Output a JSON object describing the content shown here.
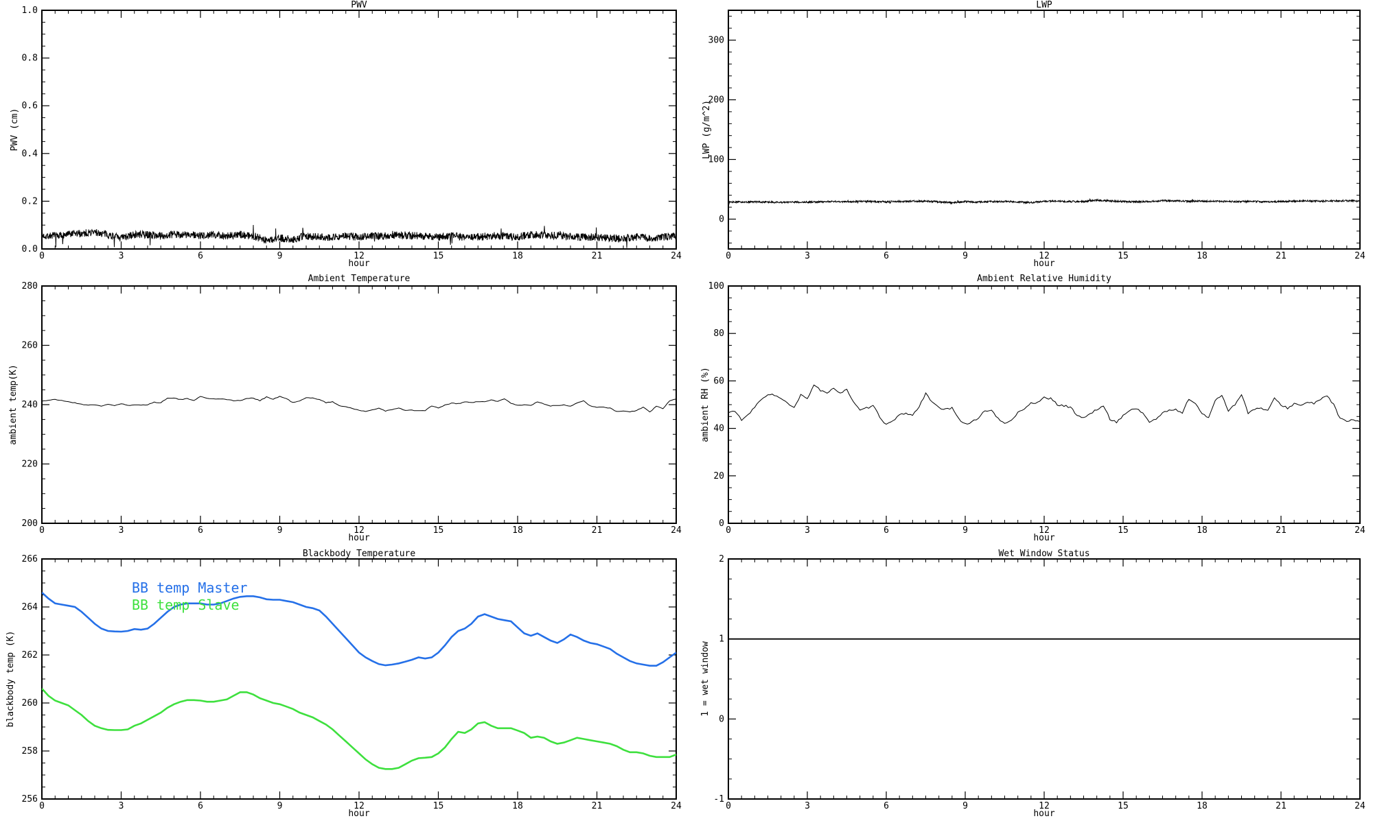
{
  "page": {
    "background": "#ffffff",
    "text_color": "#000000"
  },
  "chart_data": [
    {
      "id": "pwv",
      "type": "line",
      "title": "PWV",
      "xlabel": "hour",
      "ylabel": "PWV (cm)",
      "xlim": [
        0,
        24
      ],
      "xticks": [
        0,
        3,
        6,
        9,
        12,
        15,
        18,
        21,
        24
      ],
      "xtick_labels": [
        "0",
        "3",
        "6",
        "9",
        "12",
        "15",
        "18",
        "21",
        "24"
      ],
      "x_minor_step": 0.5,
      "ylim": [
        0,
        1
      ],
      "yticks": [
        0,
        0.2,
        0.4,
        0.6,
        0.8,
        1
      ],
      "ytick_labels": [
        "0.0",
        "0.2",
        "0.4",
        "0.6",
        "0.8",
        "1.0"
      ],
      "y_minor_step": 0.05,
      "grid": false,
      "legend_position": null,
      "series": [
        {
          "name": "PWV",
          "color": "#000000",
          "width": 1,
          "x0": 0,
          "dx": 0.5,
          "noise": 0.016,
          "points_per_hour": 85,
          "seed": 7,
          "spikes": true,
          "y": [
            0.055,
            0.055,
            0.06,
            0.065,
            0.07,
            0.06,
            0.045,
            0.06,
            0.06,
            0.055,
            0.06,
            0.06,
            0.055,
            0.06,
            0.055,
            0.06,
            0.055,
            0.035,
            0.045,
            0.04,
            0.055,
            0.05,
            0.05,
            0.055,
            0.05,
            0.055,
            0.055,
            0.06,
            0.055,
            0.055,
            0.05,
            0.055,
            0.05,
            0.05,
            0.055,
            0.055,
            0.05,
            0.06,
            0.06,
            0.055,
            0.05,
            0.05,
            0.05,
            0.045,
            0.045,
            0.05,
            0.045,
            0.05,
            0.055
          ]
        }
      ]
    },
    {
      "id": "lwp",
      "type": "line",
      "title": "LWP",
      "xlabel": "hour",
      "ylabel": "LWP (g/m^2)",
      "xlim": [
        0,
        24
      ],
      "xticks": [
        0,
        3,
        6,
        9,
        12,
        15,
        18,
        21,
        24
      ],
      "xtick_labels": [
        "0",
        "3",
        "6",
        "9",
        "12",
        "15",
        "18",
        "21",
        "24"
      ],
      "x_minor_step": 0.5,
      "ylim": [
        -50,
        350
      ],
      "yticks": [
        0,
        100,
        200,
        300
      ],
      "ytick_labels": [
        "0",
        "100",
        "200",
        "300"
      ],
      "y_minor_step": 20,
      "grid": false,
      "legend_position": null,
      "series": [
        {
          "name": "LWP",
          "color": "#000000",
          "width": 1,
          "x0": 0,
          "dx": 0.5,
          "noise": 1.4,
          "points_per_hour": 85,
          "seed": 13,
          "spikes": true,
          "y": [
            29,
            28.5,
            29,
            28.5,
            28,
            28.5,
            28.5,
            29,
            29.5,
            29,
            30,
            29.5,
            29,
            29.5,
            30,
            30,
            29,
            27.5,
            29.5,
            28.5,
            29.5,
            29.5,
            29,
            27.5,
            30,
            30,
            29.5,
            29.5,
            32,
            30.5,
            29.5,
            29,
            29.5,
            31,
            30.5,
            30,
            30,
            30,
            29.5,
            29.5,
            29.5,
            29,
            29.5,
            30,
            30.5,
            30,
            30.5,
            31,
            30
          ]
        }
      ]
    },
    {
      "id": "ambient-temperature",
      "type": "line",
      "title": "Ambient Temperature",
      "xlabel": "hour",
      "ylabel": "ambient temp(K)",
      "xlim": [
        0,
        24
      ],
      "xticks": [
        0,
        3,
        6,
        9,
        12,
        15,
        18,
        21,
        24
      ],
      "xtick_labels": [
        "0",
        "3",
        "6",
        "9",
        "12",
        "15",
        "18",
        "21",
        "24"
      ],
      "x_minor_step": 0.5,
      "ylim": [
        200,
        280
      ],
      "yticks": [
        200,
        220,
        240,
        260,
        280
      ],
      "ytick_labels": [
        "200",
        "220",
        "240",
        "260",
        "280"
      ],
      "y_minor_step": 5,
      "grid": false,
      "legend_position": null,
      "series": [
        {
          "name": "ambient temp",
          "color": "#000000",
          "width": 1,
          "x0": 0,
          "dx": 0.25,
          "noise": 0.12,
          "points_per_hour": 12,
          "seed": 21,
          "y": [
            241.2,
            241.5,
            241.7,
            241.4,
            241.0,
            240.6,
            240.1,
            239.9,
            240.0,
            239.4,
            240.2,
            239.7,
            240.3,
            239.7,
            239.8,
            239.9,
            240.0,
            240.8,
            240.6,
            242.3,
            242.2,
            241.7,
            242.0,
            241.5,
            242.7,
            242.2,
            241.9,
            242.0,
            241.8,
            241.3,
            241.4,
            242.0,
            242.2,
            241.4,
            242.6,
            241.8,
            242.8,
            242.0,
            240.7,
            241.2,
            242.3,
            242.2,
            241.8,
            240.7,
            240.9,
            239.7,
            239.3,
            238.8,
            238.0,
            237.7,
            238.3,
            238.8,
            237.9,
            238.3,
            238.8,
            238.1,
            238.1,
            237.9,
            238.0,
            239.6,
            238.8,
            239.8,
            240.5,
            240.3,
            240.9,
            240.7,
            241.0,
            240.9,
            241.6,
            241.1,
            241.9,
            240.5,
            239.8,
            239.9,
            239.8,
            240.9,
            240.2,
            239.6,
            239.7,
            240.0,
            239.5,
            240.6,
            241.4,
            239.5,
            239.1,
            239.2,
            238.8,
            237.7,
            237.8,
            237.6,
            238.0,
            239.1,
            237.5,
            239.5,
            238.6,
            241.3,
            242.0
          ]
        }
      ]
    },
    {
      "id": "ambient-rh",
      "type": "line",
      "title": "Ambient Relative Humidity",
      "xlabel": "hour",
      "ylabel": "ambient RH (%)",
      "xlim": [
        0,
        24
      ],
      "xticks": [
        0,
        3,
        6,
        9,
        12,
        15,
        18,
        21,
        24
      ],
      "xtick_labels": [
        "0",
        "3",
        "6",
        "9",
        "12",
        "15",
        "18",
        "21",
        "24"
      ],
      "x_minor_step": 0.5,
      "ylim": [
        0,
        100
      ],
      "yticks": [
        0,
        20,
        40,
        60,
        80,
        100
      ],
      "ytick_labels": [
        "0",
        "20",
        "40",
        "60",
        "80",
        "100"
      ],
      "y_minor_step": 5,
      "grid": false,
      "legend_position": null,
      "series": [
        {
          "name": "ambient RH",
          "color": "#000000",
          "width": 1,
          "x0": 0,
          "dx": 0.25,
          "noise": 0.4,
          "points_per_hour": 12,
          "seed": 33,
          "y": [
            46.5,
            47.5,
            43.5,
            45.5,
            49.0,
            52.0,
            54.5,
            54.0,
            52.5,
            50.5,
            48.5,
            54.0,
            52.5,
            58.5,
            56.0,
            54.5,
            57.0,
            55.0,
            56.5,
            51.0,
            47.5,
            48.5,
            49.5,
            45.0,
            41.5,
            43.0,
            45.5,
            46.5,
            45.5,
            49.0,
            55.0,
            51.0,
            48.5,
            48.0,
            48.5,
            44.0,
            42.0,
            42.5,
            44.5,
            47.5,
            47.5,
            44.0,
            42.0,
            43.5,
            46.5,
            48.5,
            50.5,
            51.0,
            53.0,
            52.5,
            50.0,
            49.5,
            49.0,
            45.5,
            44.5,
            46.0,
            48.0,
            49.5,
            44.0,
            42.5,
            45.5,
            47.5,
            48.5,
            46.5,
            42.5,
            44.0,
            46.5,
            47.5,
            48.0,
            46.5,
            52.5,
            50.5,
            46.0,
            44.5,
            52.0,
            54.0,
            47.5,
            50.0,
            54.5,
            46.5,
            48.0,
            48.5,
            47.5,
            52.5,
            50.0,
            48.5,
            50.5,
            49.5,
            51.0,
            50.5,
            52.0,
            54.0,
            50.0,
            44.0,
            43.0,
            43.5,
            42.5
          ]
        }
      ]
    },
    {
      "id": "blackbody-temperature",
      "type": "line",
      "title": "Blackbody Temperature",
      "xlabel": "hour",
      "ylabel": "blackbody temp (K)",
      "xlim": [
        0,
        24
      ],
      "xticks": [
        0,
        3,
        6,
        9,
        12,
        15,
        18,
        21,
        24
      ],
      "xtick_labels": [
        "0",
        "3",
        "6",
        "9",
        "12",
        "15",
        "18",
        "21",
        "24"
      ],
      "x_minor_step": 0.5,
      "ylim": [
        256,
        266
      ],
      "yticks": [
        256,
        258,
        260,
        262,
        264,
        266
      ],
      "ytick_labels": [
        "256",
        "258",
        "260",
        "262",
        "264",
        "266"
      ],
      "y_minor_step": 0.5,
      "grid": false,
      "legend_position": "top-left-inside",
      "series": [
        {
          "name": "BB temp Master",
          "color": "#2570e8",
          "width": 2.6,
          "x0": 0,
          "dx": 0.25,
          "y": [
            264.6,
            264.35,
            264.15,
            264.1,
            264.05,
            264.0,
            263.8,
            263.55,
            263.3,
            263.1,
            263.0,
            262.98,
            262.97,
            263.0,
            263.08,
            263.05,
            263.1,
            263.3,
            263.55,
            263.8,
            264.0,
            264.1,
            264.15,
            264.15,
            264.15,
            264.1,
            264.1,
            264.15,
            264.25,
            264.35,
            264.42,
            264.45,
            264.45,
            264.4,
            264.32,
            264.3,
            264.3,
            264.25,
            264.2,
            264.1,
            264.0,
            263.95,
            263.85,
            263.6,
            263.3,
            263.0,
            262.7,
            262.4,
            262.1,
            261.9,
            261.75,
            261.62,
            261.57,
            261.6,
            261.65,
            261.72,
            261.8,
            261.9,
            261.85,
            261.9,
            262.1,
            262.4,
            262.75,
            263.0,
            263.1,
            263.3,
            263.6,
            263.7,
            263.6,
            263.5,
            263.45,
            263.4,
            263.15,
            262.9,
            262.8,
            262.9,
            262.75,
            262.6,
            262.5,
            262.65,
            262.85,
            262.75,
            262.6,
            262.5,
            262.45,
            262.35,
            262.25,
            262.05,
            261.9,
            261.75,
            261.65,
            261.6,
            261.55,
            261.55,
            261.7,
            261.9,
            262.1
          ]
        },
        {
          "name": "BB temp Slave",
          "color": "#3ee03e",
          "width": 2.6,
          "x0": 0,
          "dx": 0.25,
          "y": [
            260.6,
            260.3,
            260.1,
            260.0,
            259.9,
            259.7,
            259.5,
            259.25,
            259.05,
            258.95,
            258.88,
            258.87,
            258.87,
            258.9,
            259.05,
            259.15,
            259.3,
            259.45,
            259.6,
            259.8,
            259.95,
            260.05,
            260.12,
            260.12,
            260.1,
            260.05,
            260.05,
            260.1,
            260.15,
            260.3,
            260.45,
            260.45,
            260.35,
            260.2,
            260.1,
            260.0,
            259.95,
            259.85,
            259.75,
            259.6,
            259.5,
            259.4,
            259.25,
            259.1,
            258.9,
            258.65,
            258.4,
            258.15,
            257.9,
            257.65,
            257.45,
            257.3,
            257.25,
            257.25,
            257.3,
            257.45,
            257.6,
            257.7,
            257.72,
            257.75,
            257.9,
            258.15,
            258.5,
            258.8,
            258.75,
            258.9,
            259.15,
            259.2,
            259.05,
            258.95,
            258.95,
            258.95,
            258.85,
            258.75,
            258.55,
            258.6,
            258.55,
            258.4,
            258.3,
            258.35,
            258.45,
            258.55,
            258.5,
            258.45,
            258.4,
            258.35,
            258.3,
            258.2,
            258.05,
            257.95,
            257.95,
            257.9,
            257.8,
            257.75,
            257.75,
            257.75,
            257.85
          ]
        }
      ]
    },
    {
      "id": "wet-window",
      "type": "line",
      "title": "Wet Window Status",
      "xlabel": "hour",
      "ylabel": "1 = wet window",
      "xlim": [
        0,
        24
      ],
      "xticks": [
        0,
        3,
        6,
        9,
        12,
        15,
        18,
        21,
        24
      ],
      "xtick_labels": [
        "0",
        "3",
        "6",
        "9",
        "12",
        "15",
        "18",
        "21",
        "24"
      ],
      "x_minor_step": 0.5,
      "ylim": [
        -1,
        2
      ],
      "yticks": [
        -1,
        0,
        1,
        2
      ],
      "ytick_labels": [
        "-1",
        "0",
        "1",
        "2"
      ],
      "y_minor_step": 0.25,
      "grid": false,
      "legend_position": null,
      "series": [
        {
          "name": "wet window status",
          "color": "#000000",
          "width": 1.8,
          "x0": 0,
          "dx": 24,
          "y": [
            1,
            1
          ]
        }
      ]
    }
  ]
}
